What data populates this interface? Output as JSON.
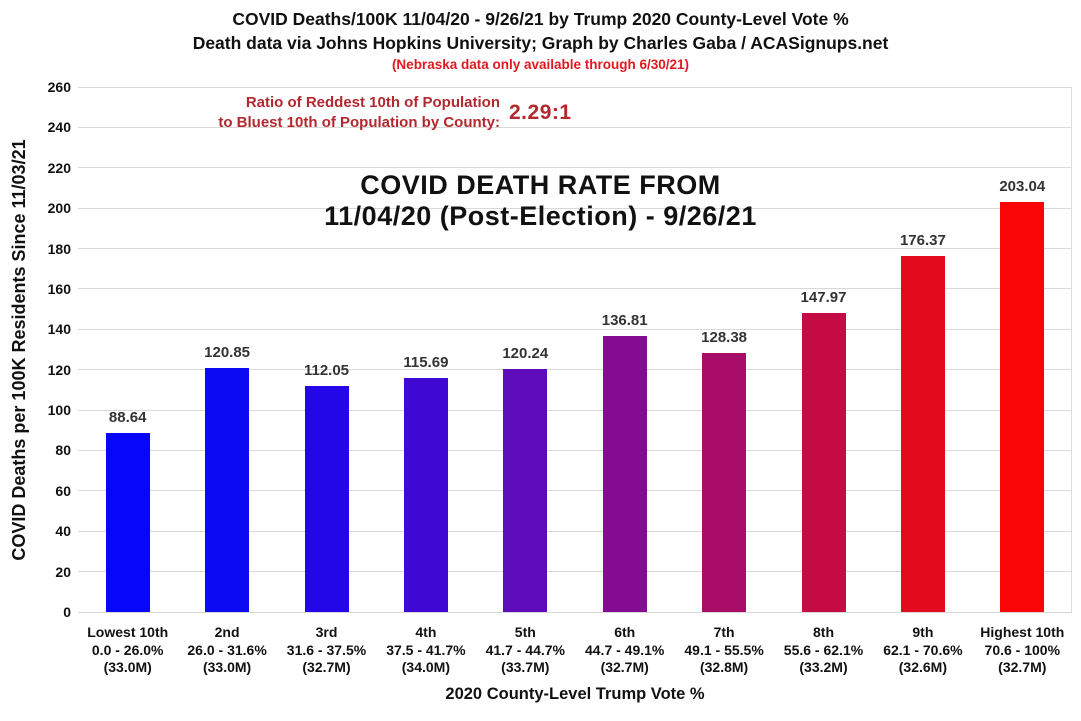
{
  "header": {
    "title_line1": "COVID Deaths/100K 11/04/20 - 9/26/21 by Trump 2020 County-Level Vote %",
    "title_line2": "Death data via Johns Hopkins University; Graph by Charles Gaba / ACASignups.net",
    "title_line3": "(Nebraska data only available through 6/30/21)"
  },
  "annotation": {
    "ratio_line1": "Ratio of Reddest 10th of Population",
    "ratio_line2": "to Bluest 10th of Population by County:",
    "ratio_value": "2.29:1"
  },
  "chart_overlay_title": {
    "line1": "COVID DEATH RATE FROM",
    "line2": "11/04/20 (Post-Election) - 9/26/21"
  },
  "chart_data": {
    "type": "bar",
    "title": "COVID DEATH RATE FROM 11/04/20 (Post-Election) - 9/26/21",
    "xlabel": "2020 County-Level Trump Vote %",
    "ylabel": "COVID Deaths per 100K Residents Since 11/03/21",
    "ylim": [
      0,
      260
    ],
    "ytick_step": 20,
    "yticks": [
      0,
      20,
      40,
      60,
      80,
      100,
      120,
      140,
      160,
      180,
      200,
      220,
      240,
      260
    ],
    "grid": true,
    "legend": false,
    "categories": [
      {
        "rank": "Lowest 10th",
        "range": "0.0 - 26.0%",
        "population": "(33.0M)"
      },
      {
        "rank": "2nd",
        "range": "26.0 - 31.6%",
        "population": "(33.0M)"
      },
      {
        "rank": "3rd",
        "range": "31.6 - 37.5%",
        "population": "(32.7M)"
      },
      {
        "rank": "4th",
        "range": "37.5 - 41.7%",
        "population": "(34.0M)"
      },
      {
        "rank": "5th",
        "range": "41.7 - 44.7%",
        "population": "(33.7M)"
      },
      {
        "rank": "6th",
        "range": "44.7 - 49.1%",
        "population": "(32.7M)"
      },
      {
        "rank": "7th",
        "range": "49.1 - 55.5%",
        "population": "(32.8M)"
      },
      {
        "rank": "8th",
        "range": "55.6 - 62.1%",
        "population": "(33.2M)"
      },
      {
        "rank": "9th",
        "range": "62.1 - 70.6%",
        "population": "(32.6M)"
      },
      {
        "rank": "Highest 10th",
        "range": "70.6 - 100%",
        "population": "(32.7M)"
      }
    ],
    "values": [
      88.64,
      120.85,
      112.05,
      115.69,
      120.24,
      136.81,
      128.38,
      147.97,
      176.37,
      203.04
    ],
    "value_labels": [
      "88.64",
      "120.85",
      "112.05",
      "115.69",
      "120.24",
      "136.81",
      "128.38",
      "147.97",
      "176.37",
      "203.04"
    ],
    "bar_colors": [
      "#0806fa",
      "#0b0af2",
      "#2407e9",
      "#4009d3",
      "#5d0bbb",
      "#830c93",
      "#a80d69",
      "#c40b44",
      "#e30a1e",
      "#fa0505"
    ]
  },
  "colors": {
    "note_red": "#e01920",
    "annotation_red": "#b2282e",
    "value_label_gray": "#333333",
    "gridline_gray": "#d9d9d9"
  }
}
